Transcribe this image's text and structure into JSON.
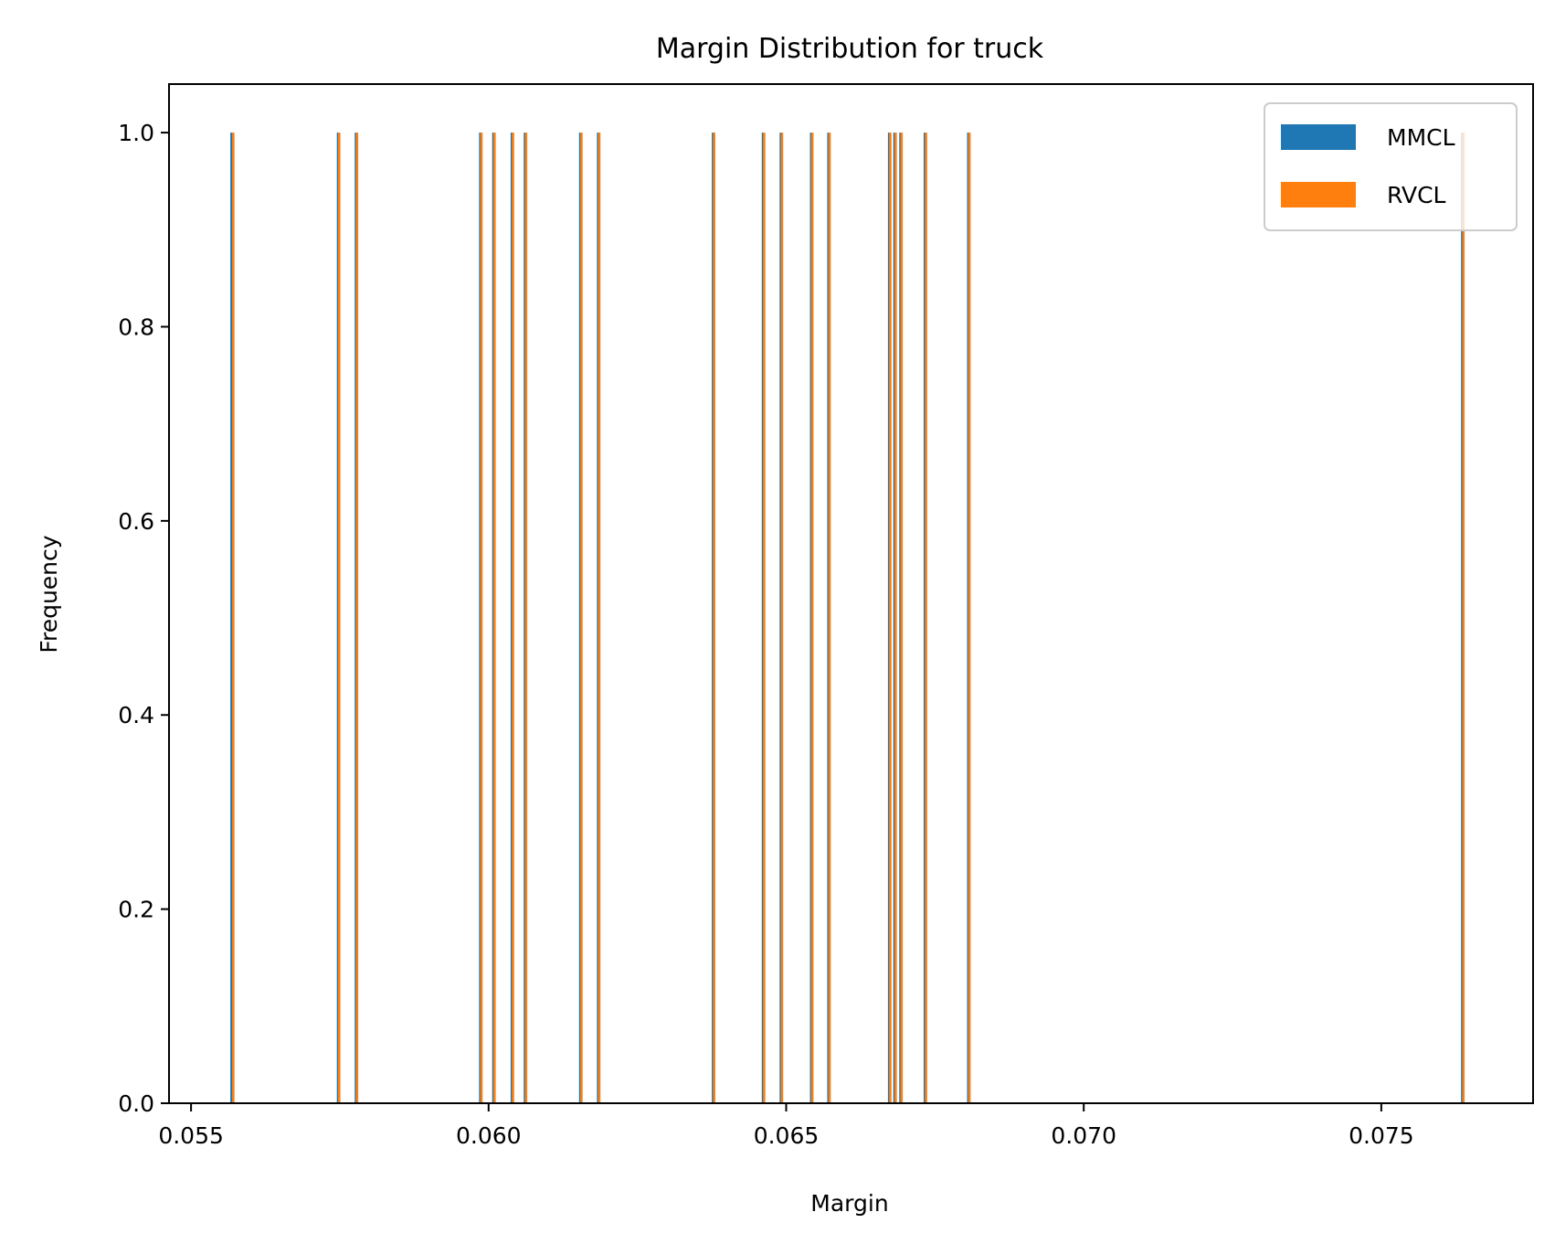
{
  "chart_data": {
    "type": "bar",
    "title": "Margin Distribution for truck",
    "xlabel": "Margin",
    "ylabel": "Frequency",
    "xlim": [
      0.05463,
      0.07755
    ],
    "ylim": [
      0.0,
      1.05
    ],
    "xticks": [
      0.055,
      0.06,
      0.065,
      0.07,
      0.075
    ],
    "xtick_labels": [
      "0.055",
      "0.060",
      "0.065",
      "0.070",
      "0.075"
    ],
    "yticks": [
      0.0,
      0.2,
      0.4,
      0.6,
      0.8,
      1.0
    ],
    "ytick_labels": [
      "0.0",
      "0.2",
      "0.4",
      "0.6",
      "0.8",
      "1.0"
    ],
    "grid": false,
    "legend_position": "top-right",
    "series": [
      {
        "name": "MMCL",
        "color": "#1f77b4",
        "values": [
          0.05568,
          0.05747,
          0.05777,
          0.05986,
          0.06008,
          0.06039,
          0.06061,
          0.06154,
          0.06184,
          0.06377,
          0.06461,
          0.06491,
          0.06542,
          0.06571,
          0.06673,
          0.06682,
          0.06692,
          0.06733,
          0.06806,
          0.07636
        ],
        "frequencies": [
          1,
          1,
          1,
          1,
          1,
          1,
          1,
          1,
          1,
          1,
          1,
          1,
          1,
          1,
          1,
          1,
          1,
          1,
          1,
          1
        ]
      },
      {
        "name": "RVCL",
        "color": "#ff7f0e",
        "values": [
          0.05571,
          0.05749,
          0.05779,
          0.05988,
          0.0601,
          0.06041,
          0.06063,
          0.06156,
          0.06186,
          0.06379,
          0.06463,
          0.06493,
          0.06544,
          0.06573,
          0.06675,
          0.06684,
          0.06694,
          0.06735,
          0.06808,
          0.07638
        ],
        "frequencies": [
          1,
          1,
          1,
          1,
          1,
          1,
          1,
          1,
          1,
          1,
          1,
          1,
          1,
          1,
          1,
          1,
          1,
          1,
          1,
          1
        ]
      }
    ]
  }
}
